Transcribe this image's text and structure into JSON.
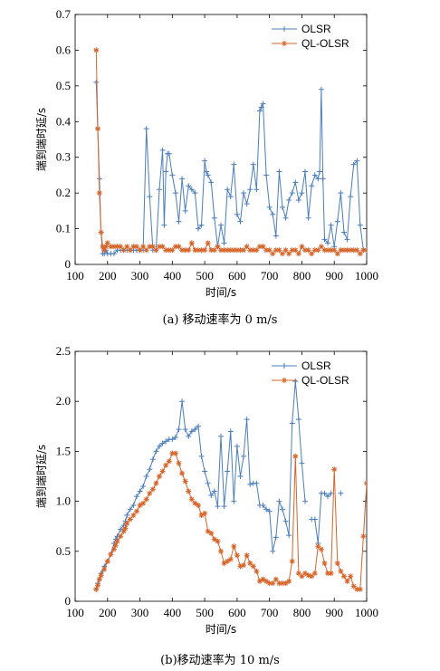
{
  "chart_data": [
    {
      "type": "line",
      "caption": "(a) 移动速率为 0 m/s",
      "xlabel": "时间/s",
      "ylabel": "端到端时延/s",
      "xlim": [
        100,
        1000
      ],
      "ylim": [
        0,
        0.7
      ],
      "xticks": [
        "100",
        "200",
        "300",
        "400",
        "500",
        "600",
        "700",
        "800",
        "900",
        "1000"
      ],
      "yticks": [
        "0",
        "0.1",
        "0.2",
        "0.3",
        "0.4",
        "0.5",
        "0.6",
        "0.7"
      ],
      "legend_position": "top-right",
      "series": [
        {
          "name": "OLSR",
          "color": "#4a7ebb",
          "marker": "plus",
          "x": [
            165,
            170,
            175,
            180,
            185,
            190,
            195,
            200,
            210,
            220,
            230,
            240,
            250,
            260,
            270,
            280,
            290,
            300,
            310,
            320,
            330,
            340,
            350,
            360,
            370,
            375,
            380,
            385,
            390,
            400,
            410,
            420,
            430,
            440,
            450,
            460,
            470,
            480,
            490,
            500,
            505,
            510,
            520,
            530,
            540,
            550,
            560,
            570,
            580,
            590,
            600,
            610,
            620,
            630,
            640,
            650,
            660,
            670,
            675,
            680,
            690,
            700,
            710,
            720,
            730,
            740,
            750,
            760,
            770,
            780,
            790,
            800,
            810,
            820,
            830,
            840,
            850,
            855,
            860,
            865,
            870,
            880,
            890,
            900,
            910,
            920,
            930,
            940,
            950,
            960,
            970,
            980,
            990,
            1000
          ],
          "y": [
            0.51,
            0.38,
            0.24,
            0.09,
            0.03,
            0.03,
            0.04,
            0.03,
            0.03,
            0.03,
            0.04,
            0.04,
            0.04,
            0.04,
            0.04,
            0.04,
            0.04,
            0.04,
            0.04,
            0.38,
            0.19,
            0.04,
            0.04,
            0.21,
            0.32,
            0.11,
            0.26,
            0.31,
            0.31,
            0.25,
            0.2,
            0.12,
            0.24,
            0.15,
            0.22,
            0.21,
            0.2,
            0.1,
            0.11,
            0.29,
            0.26,
            0.25,
            0.23,
            0.13,
            0.05,
            0.11,
            0.06,
            0.21,
            0.19,
            0.28,
            0.14,
            0.12,
            0.2,
            0.17,
            0.21,
            0.28,
            0.21,
            0.43,
            0.44,
            0.45,
            0.25,
            0.16,
            0.14,
            0.08,
            0.26,
            0.16,
            0.13,
            0.18,
            0.2,
            0.23,
            0.18,
            0.2,
            0.26,
            0.13,
            0.22,
            0.25,
            0.24,
            0.26,
            0.49,
            0.24,
            0.07,
            0.06,
            0.11,
            0.05,
            0.12,
            0.2,
            0.09,
            0.07,
            0.19,
            0.28,
            0.29,
            0.11,
            0.04,
            0.04
          ]
        },
        {
          "name": "QL-OLSR",
          "color": "#d6652a",
          "marker": "star",
          "x": [
            165,
            170,
            175,
            180,
            185,
            190,
            195,
            200,
            210,
            220,
            230,
            240,
            250,
            260,
            270,
            280,
            290,
            300,
            310,
            320,
            330,
            340,
            350,
            360,
            370,
            380,
            390,
            400,
            410,
            420,
            430,
            440,
            450,
            460,
            470,
            480,
            490,
            500,
            510,
            520,
            530,
            540,
            550,
            560,
            570,
            580,
            590,
            600,
            610,
            620,
            630,
            640,
            650,
            660,
            670,
            680,
            690,
            700,
            710,
            720,
            730,
            740,
            750,
            760,
            770,
            780,
            790,
            800,
            810,
            820,
            830,
            840,
            850,
            860,
            870,
            880,
            890,
            900,
            910,
            920,
            930,
            940,
            950,
            960,
            970,
            980,
            990,
            1000
          ],
          "y": [
            0.6,
            0.38,
            0.2,
            0.09,
            0.05,
            0.04,
            0.05,
            0.06,
            0.05,
            0.05,
            0.05,
            0.05,
            0.04,
            0.05,
            0.04,
            0.05,
            0.05,
            0.04,
            0.05,
            0.04,
            0.05,
            0.05,
            0.04,
            0.05,
            0.05,
            0.04,
            0.04,
            0.04,
            0.05,
            0.05,
            0.04,
            0.04,
            0.04,
            0.06,
            0.04,
            0.04,
            0.04,
            0.04,
            0.06,
            0.04,
            0.04,
            0.05,
            0.04,
            0.04,
            0.04,
            0.04,
            0.04,
            0.04,
            0.04,
            0.04,
            0.05,
            0.04,
            0.04,
            0.04,
            0.05,
            0.05,
            0.04,
            0.04,
            0.03,
            0.04,
            0.04,
            0.03,
            0.04,
            0.03,
            0.04,
            0.04,
            0.03,
            0.05,
            0.04,
            0.04,
            0.03,
            0.04,
            0.04,
            0.05,
            0.04,
            0.04,
            0.04,
            0.04,
            0.03,
            0.04,
            0.04,
            0.04,
            0.04,
            0.04,
            0.04,
            0.03,
            0.04,
            0.04
          ]
        }
      ]
    },
    {
      "type": "line",
      "caption": "(b)移动速率为 10 m/s",
      "xlabel": "时间/s",
      "ylabel": "端到端时延/s",
      "xlim": [
        100,
        1000
      ],
      "ylim": [
        0,
        2.5
      ],
      "xticks": [
        "100",
        "200",
        "300",
        "400",
        "500",
        "600",
        "700",
        "800",
        "900",
        "1000"
      ],
      "yticks": [
        "0",
        "0.5",
        "1.0",
        "1.5",
        "2.0",
        "2.5"
      ],
      "legend_position": "top-right",
      "series": [
        {
          "name": "OLSR",
          "color": "#4a7ebb",
          "marker": "plus",
          "x": [
            165,
            170,
            175,
            180,
            190,
            200,
            210,
            220,
            225,
            230,
            240,
            250,
            255,
            260,
            270,
            280,
            290,
            300,
            310,
            320,
            330,
            340,
            350,
            360,
            370,
            380,
            390,
            400,
            410,
            420,
            430,
            440,
            450,
            460,
            470,
            480,
            490,
            500,
            510,
            520,
            530,
            540,
            550,
            560,
            570,
            580,
            590,
            600,
            610,
            620,
            630,
            640,
            650,
            660,
            670,
            680,
            690,
            700,
            710,
            720,
            730,
            740,
            750,
            760,
            770,
            780,
            790,
            800,
            810,
            820,
            830,
            840,
            850,
            860,
            870,
            880,
            890,
            900,
            910,
            920,
            930,
            940,
            950,
            960,
            970,
            980,
            990,
            1000
          ],
          "y": [
            0.12,
            0.18,
            0.22,
            0.28,
            0.35,
            0.4,
            0.47,
            0.58,
            0.62,
            0.65,
            0.72,
            0.76,
            0.8,
            0.86,
            0.92,
            0.96,
            1.05,
            1.1,
            1.15,
            1.25,
            1.32,
            1.42,
            1.5,
            1.55,
            1.58,
            1.6,
            1.62,
            1.62,
            1.64,
            1.72,
            2.0,
            1.72,
            1.65,
            1.7,
            1.72,
            1.75,
            1.45,
            1.3,
            1.18,
            1.06,
            1.1,
            0.95,
            1.65,
            0.95,
            1.3,
            1.7,
            1.0,
            1.55,
            1.25,
            1.45,
            1.82,
            1.17,
            1.18,
            1.18,
            0.96,
            0.96,
            0.92,
            0.9,
            0.5,
            0.64,
            1.0,
            0.92,
            0.8,
            0.66,
            1.78,
            2.2,
            1.82,
            1.38,
            1.0,
            null,
            0.82,
            0.82,
            0.58,
            1.08,
            1.08,
            1.05,
            1.08,
            null,
            null,
            1.08,
            null,
            null,
            null,
            null,
            null,
            null,
            null,
            null
          ]
        },
        {
          "name": "QL-OLSR",
          "color": "#d6652a",
          "marker": "star",
          "x": [
            165,
            170,
            175,
            180,
            190,
            200,
            210,
            220,
            225,
            230,
            240,
            250,
            255,
            260,
            270,
            280,
            290,
            300,
            310,
            320,
            330,
            340,
            350,
            360,
            370,
            380,
            390,
            400,
            410,
            420,
            430,
            440,
            450,
            460,
            470,
            480,
            490,
            500,
            510,
            520,
            530,
            540,
            550,
            560,
            570,
            580,
            590,
            600,
            610,
            620,
            630,
            640,
            650,
            660,
            670,
            680,
            690,
            700,
            710,
            720,
            730,
            740,
            750,
            760,
            770,
            780,
            790,
            800,
            810,
            820,
            830,
            840,
            850,
            860,
            870,
            880,
            890,
            900,
            910,
            920,
            930,
            940,
            950,
            960,
            970,
            980,
            990,
            1000
          ],
          "y": [
            0.12,
            0.16,
            0.22,
            0.26,
            0.32,
            0.4,
            0.47,
            0.52,
            0.56,
            0.6,
            0.65,
            0.7,
            0.73,
            0.78,
            0.82,
            0.86,
            0.9,
            0.96,
            0.98,
            1.02,
            1.08,
            1.12,
            1.18,
            1.25,
            1.3,
            1.36,
            1.4,
            1.48,
            1.48,
            1.38,
            1.28,
            1.2,
            1.1,
            1.02,
            0.98,
            0.96,
            0.86,
            0.88,
            0.7,
            0.68,
            0.62,
            0.6,
            0.5,
            0.38,
            0.4,
            0.42,
            0.55,
            0.46,
            0.35,
            0.36,
            0.46,
            0.38,
            0.35,
            0.3,
            0.2,
            0.22,
            0.2,
            0.18,
            0.18,
            0.22,
            0.18,
            0.18,
            0.18,
            0.2,
            0.4,
            1.45,
            0.28,
            0.25,
            0.28,
            0.26,
            0.25,
            0.28,
            0.55,
            0.52,
            0.38,
            0.28,
            0.28,
            1.32,
            0.38,
            0.3,
            0.25,
            0.2,
            0.25,
            0.15,
            0.12,
            0.12,
            0.65,
            1.18
          ]
        }
      ]
    }
  ]
}
